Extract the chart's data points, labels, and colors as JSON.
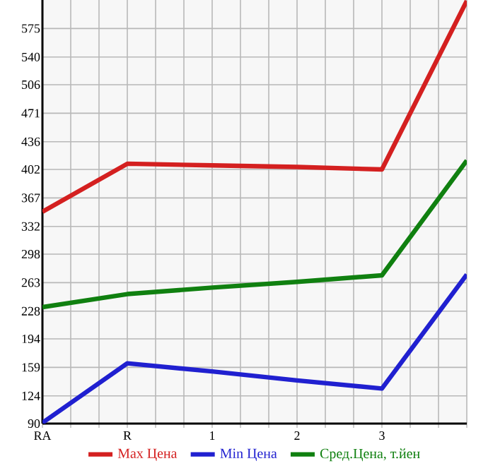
{
  "chart_data": {
    "type": "line",
    "categories": [
      "RA",
      "R",
      "1",
      "2",
      "3",
      null
    ],
    "series": [
      {
        "name": "Max Цена",
        "color": "#d42020",
        "values": [
          350,
          409,
          407,
          405,
          402,
          609
        ]
      },
      {
        "name": "Min Цена",
        "color": "#2020d0",
        "values": [
          91,
          164,
          154,
          143,
          133,
          273
        ]
      },
      {
        "name": "Сред.Цена, т.йен",
        "color": "#108010",
        "values": [
          233,
          249,
          257,
          264,
          272,
          413
        ]
      }
    ],
    "ylim": [
      90,
      610
    ],
    "yticks": [
      90,
      124,
      159,
      194,
      228,
      263,
      298,
      332,
      367,
      402,
      436,
      471,
      506,
      540,
      575
    ],
    "grid": true,
    "legend": "bottom",
    "marker": "none",
    "line_style": "solid"
  }
}
